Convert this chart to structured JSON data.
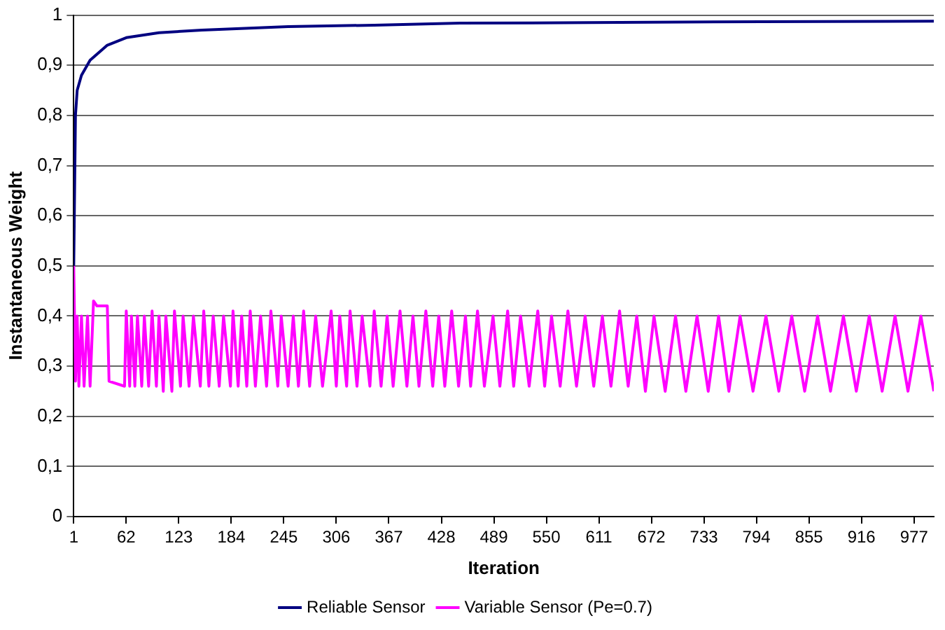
{
  "chart_data": {
    "type": "line",
    "xlabel": "Iteration",
    "ylabel": "Instantaneous Weight",
    "xlim": [
      1,
      1000
    ],
    "xticks": [
      1,
      62,
      123,
      184,
      245,
      306,
      367,
      428,
      489,
      550,
      611,
      672,
      733,
      794,
      855,
      916,
      977
    ],
    "ylim": [
      0,
      1
    ],
    "yticks": [
      0,
      {
        "value": 0.1,
        "label": "0,1"
      },
      {
        "value": 0.2,
        "label": "0,2"
      },
      {
        "value": 0.3,
        "label": "0,3"
      },
      {
        "value": 0.4,
        "label": "0,4"
      },
      {
        "value": 0.5,
        "label": "0,5"
      },
      {
        "value": 0.6,
        "label": "0,6"
      },
      {
        "value": 0.7,
        "label": "0,7"
      },
      {
        "value": 0.8,
        "label": "0,8"
      },
      {
        "value": 0.9,
        "label": "0,9"
      },
      1
    ],
    "grid": "y",
    "legend": "bottom",
    "marker": "none",
    "line_style": "solid",
    "series": [
      {
        "name": "Reliable Sensor",
        "color": "#000080",
        "x": [
          1,
          3,
          5,
          10,
          20,
          40,
          62,
          100,
          150,
          250,
          350,
          450,
          600,
          800,
          1000
        ],
        "values": [
          0.5,
          0.8,
          0.85,
          0.88,
          0.91,
          0.94,
          0.955,
          0.965,
          0.97,
          0.977,
          0.98,
          0.984,
          0.985,
          0.987,
          0.988
        ]
      },
      {
        "name": "Variable Sensor (Pe=0.7)",
        "color": "#ff00ff",
        "x": [
          1,
          3,
          5,
          7,
          10,
          13,
          17,
          20,
          24,
          28,
          40,
          42,
          60,
          62,
          66,
          68,
          72,
          75,
          80,
          83,
          88,
          92,
          97,
          100,
          105,
          108,
          115,
          118,
          125,
          128,
          135,
          140,
          148,
          152,
          158,
          163,
          170,
          175,
          183,
          186,
          192,
          196,
          202,
          206,
          212,
          218,
          225,
          230,
          238,
          242,
          250,
          256,
          262,
          268,
          275,
          282,
          290,
          300,
          306,
          310,
          318,
          322,
          330,
          336,
          345,
          350,
          358,
          365,
          372,
          380,
          388,
          395,
          402,
          410,
          418,
          425,
          432,
          440,
          448,
          456,
          462,
          470,
          478,
          488,
          496,
          505,
          512,
          520,
          530,
          540,
          548,
          556,
          566,
          575,
          585,
          595,
          605,
          615,
          625,
          635,
          645,
          655,
          665,
          675,
          688,
          700,
          712,
          725,
          738,
          750,
          762,
          775,
          790,
          805,
          820,
          835,
          850,
          865,
          880,
          895,
          910,
          925,
          940,
          955,
          970,
          985,
          1000
        ],
        "values": [
          0.5,
          0.27,
          0.4,
          0.26,
          0.4,
          0.26,
          0.4,
          0.26,
          0.43,
          0.42,
          0.42,
          0.27,
          0.26,
          0.41,
          0.26,
          0.4,
          0.26,
          0.4,
          0.26,
          0.4,
          0.26,
          0.41,
          0.26,
          0.4,
          0.25,
          0.4,
          0.25,
          0.41,
          0.26,
          0.4,
          0.26,
          0.4,
          0.26,
          0.41,
          0.26,
          0.4,
          0.26,
          0.4,
          0.26,
          0.41,
          0.26,
          0.4,
          0.26,
          0.41,
          0.26,
          0.4,
          0.26,
          0.41,
          0.26,
          0.4,
          0.26,
          0.4,
          0.26,
          0.41,
          0.26,
          0.4,
          0.26,
          0.41,
          0.26,
          0.4,
          0.26,
          0.41,
          0.26,
          0.4,
          0.26,
          0.41,
          0.26,
          0.4,
          0.26,
          0.41,
          0.26,
          0.4,
          0.26,
          0.41,
          0.26,
          0.4,
          0.26,
          0.41,
          0.26,
          0.4,
          0.26,
          0.41,
          0.26,
          0.4,
          0.26,
          0.41,
          0.26,
          0.4,
          0.26,
          0.41,
          0.26,
          0.4,
          0.26,
          0.41,
          0.26,
          0.4,
          0.26,
          0.4,
          0.26,
          0.41,
          0.26,
          0.4,
          0.25,
          0.4,
          0.25,
          0.4,
          0.25,
          0.4,
          0.25,
          0.4,
          0.25,
          0.4,
          0.25,
          0.4,
          0.25,
          0.4,
          0.25,
          0.4,
          0.25,
          0.4,
          0.25,
          0.4,
          0.25,
          0.4,
          0.25,
          0.4,
          0.25
        ]
      }
    ]
  }
}
